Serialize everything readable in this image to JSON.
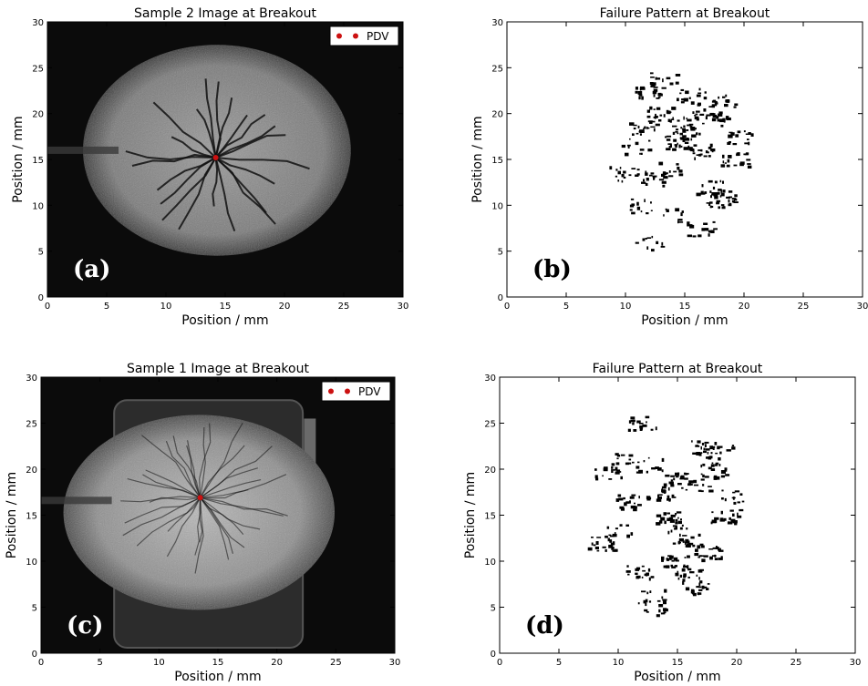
{
  "figure": {
    "panels": [
      {
        "id": "a",
        "title": "Sample 2 Image at Breakout",
        "type": "image",
        "panel_label": "(a)",
        "legend": "PDV",
        "pdv": [
          14.2,
          15.2
        ],
        "label_color": "#ffffff",
        "center": [
          14.3,
          16.0
        ],
        "radii": [
          11.3,
          11.5
        ]
      },
      {
        "id": "b",
        "title": "Failure Pattern at Breakout",
        "type": "pattern",
        "panel_label": "(b)",
        "label_color": "#000000"
      },
      {
        "id": "c",
        "title": "Sample 1 Image at Breakout",
        "type": "image",
        "panel_label": "(c)",
        "legend": "PDV",
        "pdv": [
          13.5,
          16.9
        ],
        "label_color": "#ffffff",
        "center": [
          13.4,
          15.3
        ],
        "radii": [
          11.5,
          10.6
        ]
      },
      {
        "id": "d",
        "title": "Failure Pattern at Breakout",
        "type": "pattern",
        "panel_label": "(d)",
        "label_color": "#000000"
      }
    ],
    "xlabel": "Position / mm",
    "ylabel": "Position / mm",
    "ticks": [
      "0",
      "5",
      "10",
      "15",
      "20",
      "25",
      "30"
    ],
    "xlim": [
      0,
      30
    ],
    "ylim": [
      0,
      30
    ],
    "pdv_color": "#cc1111"
  },
  "chart_data": [
    {
      "type": "scatter",
      "title": "Sample 2 Image at Breakout",
      "xlabel": "Position / mm",
      "ylabel": "Position / mm",
      "xlim": [
        0,
        30
      ],
      "ylim": [
        0,
        30
      ],
      "legend": "top-right",
      "series": [
        {
          "name": "PDV",
          "x": [
            14.2
          ],
          "y": [
            15.2
          ]
        }
      ]
    },
    {
      "type": "scatter",
      "title": "Failure Pattern at Breakout",
      "xlabel": "Position / mm",
      "ylabel": "Position / mm",
      "xlim": [
        0,
        30
      ],
      "ylim": [
        0,
        30
      ],
      "series": [
        {
          "x": [
            15.0,
            13.0,
            17.5,
            16.2,
            11.5,
            18.5,
            13.8,
            10.8,
            15.5,
            19.6,
            12.5,
            11.0,
            17.0,
            14.0,
            19.2,
            16.8,
            12.0,
            14.5,
            9.8,
            18.0,
            13.2,
            16.3,
            11.9,
            17.8,
            14.8
          ],
          "y": [
            18.0,
            20.0,
            19.5,
            16.0,
            18.5,
            21.5,
            14.0,
            16.5,
            22.0,
            17.5,
            13.0,
            10.0,
            12.0,
            9.0,
            15.0,
            20.5,
            22.5,
            17.0,
            13.5,
            10.5,
            24.0,
            7.5,
            6.0,
            11.0,
            19.0
          ]
        }
      ]
    },
    {
      "type": "scatter",
      "title": "Sample 1 Image at Breakout",
      "xlabel": "Position / mm",
      "ylabel": "Position / mm",
      "xlim": [
        0,
        30
      ],
      "ylim": [
        0,
        30
      ],
      "legend": "top-right",
      "series": [
        {
          "name": "PDV",
          "x": [
            13.5
          ],
          "y": [
            16.9
          ]
        }
      ]
    },
    {
      "type": "scatter",
      "title": "Failure Pattern at Breakout",
      "xlabel": "Position / mm",
      "ylabel": "Position / mm",
      "xlim": [
        0,
        30
      ],
      "ylim": [
        0,
        30
      ],
      "series": [
        {
          "x": [
            15.0,
            12.5,
            16.5,
            13.5,
            18.0,
            10.5,
            14.2,
            19.5,
            11.0,
            15.8,
            12.0,
            17.2,
            9.0,
            14.8,
            16.0,
            11.8,
            19.0,
            13.0,
            8.5,
            17.5,
            12.8,
            15.3,
            10.0,
            18.5,
            16.8
          ],
          "y": [
            19.0,
            20.5,
            18.5,
            17.5,
            20.0,
            21.0,
            15.0,
            17.0,
            16.5,
            12.5,
            25.0,
            22.5,
            19.5,
            10.0,
            8.5,
            9.0,
            15.0,
            6.5,
            12.0,
            11.0,
            5.0,
            14.0,
            13.5,
            22.0,
            7.0
          ]
        }
      ]
    }
  ]
}
